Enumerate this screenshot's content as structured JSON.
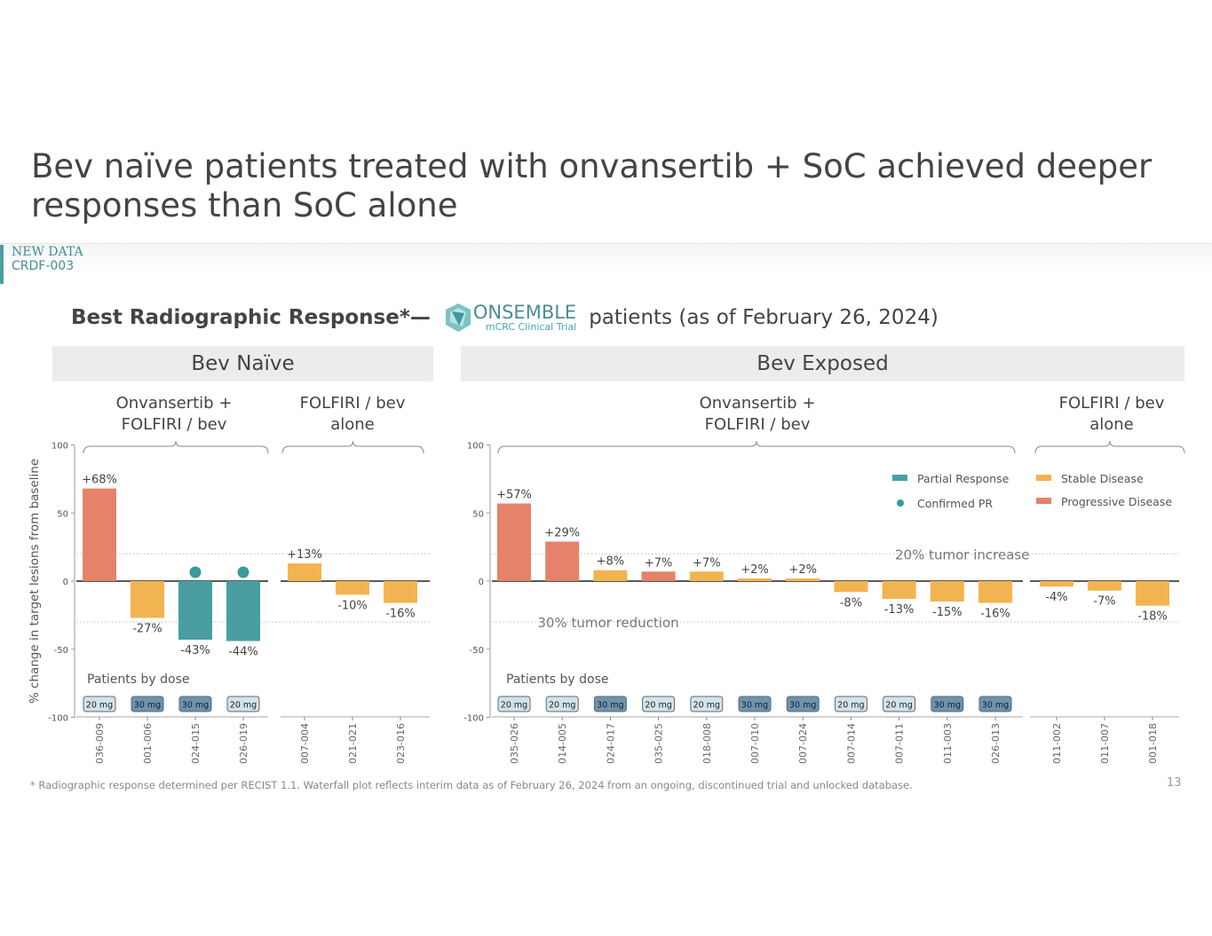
{
  "title": "Bev naïve patients treated with onvansertib + SoC achieved deeper responses than SoC alone",
  "tag": {
    "line1": "NEW DATA",
    "line2": "CRDF-003"
  },
  "subtitle": {
    "bold": "Best Radiographic Response*—",
    "logo_name": "ONSEMBLE",
    "logo_sub": "mCRC Clinical Trial",
    "rest": "patients (as of February 26, 2024)"
  },
  "panels": {
    "left": "Bev Naïve",
    "right": "Bev Exposed"
  },
  "group_labels": {
    "combo": "Onvansertib +\nFOLFIRI / bev",
    "alone": "FOLFIRI / bev\nalone"
  },
  "colors": {
    "Partial Response": "#4a9ea0",
    "Stable Disease": "#f2b450",
    "Progressive Disease": "#e5826a",
    "Confirmed PR": "#3a9a9c",
    "dose_20": "#d5e1e9",
    "dose_30": "#6e93aa"
  },
  "legend": [
    "Partial Response",
    "Confirmed PR",
    "Stable Disease",
    "Progressive Disease"
  ],
  "annotations": {
    "increase": "20% tumor increase",
    "reduction": "30% tumor reduction",
    "dose_title": "Patients by dose"
  },
  "footnote": "*  Radiographic response determined per RECIST 1.1. Waterfall plot reflects interim data as of February 26, 2024 from an ongoing, discontinued trial and unlocked database.",
  "page_number": "13",
  "chart_data": [
    {
      "type": "bar",
      "title": "Bev Naïve",
      "ylabel": "% change in target lesions from baseline",
      "ylim": [
        -100,
        100
      ],
      "yticks": [
        100,
        50,
        0,
        -50,
        -100
      ],
      "reference_lines": [
        20,
        -30
      ],
      "groups": [
        {
          "name": "Onvansertib + FOLFIRI / bev",
          "patients": [
            {
              "id": "036-009",
              "value": 68,
              "label": "+68%",
              "response": "Progressive Disease",
              "dose": "20 mg"
            },
            {
              "id": "001-006",
              "value": -27,
              "label": "-27%",
              "response": "Stable Disease",
              "dose": "30 mg"
            },
            {
              "id": "024-015",
              "value": -43,
              "label": "-43%",
              "response": "Partial Response",
              "confirmed": true,
              "dose": "30 mg"
            },
            {
              "id": "026-019",
              "value": -44,
              "label": "-44%",
              "response": "Partial Response",
              "confirmed": true,
              "dose": "20 mg"
            }
          ]
        },
        {
          "name": "FOLFIRI / bev alone",
          "patients": [
            {
              "id": "007-004",
              "value": 13,
              "label": "+13%",
              "response": "Stable Disease"
            },
            {
              "id": "021-021",
              "value": -10,
              "label": "-10%",
              "response": "Stable Disease"
            },
            {
              "id": "023-016",
              "value": -16,
              "label": "-16%",
              "response": "Stable Disease"
            }
          ]
        }
      ]
    },
    {
      "type": "bar",
      "title": "Bev Exposed",
      "ylim": [
        -100,
        100
      ],
      "yticks": [
        100,
        50,
        0,
        -50,
        -100
      ],
      "reference_lines": [
        20,
        -30
      ],
      "groups": [
        {
          "name": "Onvansertib + FOLFIRI / bev",
          "patients": [
            {
              "id": "035-026",
              "value": 57,
              "label": "+57%",
              "response": "Progressive Disease",
              "dose": "20 mg"
            },
            {
              "id": "014-005",
              "value": 29,
              "label": "+29%",
              "response": "Progressive Disease",
              "dose": "20 mg"
            },
            {
              "id": "024-017",
              "value": 8,
              "label": "+8%",
              "response": "Stable Disease",
              "dose": "30 mg"
            },
            {
              "id": "035-025",
              "value": 7,
              "label": "+7%",
              "response": "Progressive Disease",
              "dose": "20 mg"
            },
            {
              "id": "018-008",
              "value": 7,
              "label": "+7%",
              "response": "Stable Disease",
              "dose": "20 mg"
            },
            {
              "id": "007-010",
              "value": 2,
              "label": "+2%",
              "response": "Stable Disease",
              "dose": "30 mg"
            },
            {
              "id": "007-024",
              "value": 2,
              "label": "+2%",
              "response": "Stable Disease",
              "dose": "30 mg"
            },
            {
              "id": "007-014",
              "value": -8,
              "label": "-8%",
              "response": "Stable Disease",
              "dose": "20 mg"
            },
            {
              "id": "007-011",
              "value": -13,
              "label": "-13%",
              "response": "Stable Disease",
              "dose": "20 mg"
            },
            {
              "id": "011-003",
              "value": -15,
              "label": "-15%",
              "response": "Stable Disease",
              "dose": "30 mg"
            },
            {
              "id": "026-013",
              "value": -16,
              "label": "-16%",
              "response": "Stable Disease",
              "dose": "30 mg"
            }
          ]
        },
        {
          "name": "FOLFIRI / bev alone",
          "patients": [
            {
              "id": "011-002",
              "value": -4,
              "label": "-4%",
              "response": "Stable Disease"
            },
            {
              "id": "011-007",
              "value": -7,
              "label": "-7%",
              "response": "Stable Disease"
            },
            {
              "id": "001-018",
              "value": -18,
              "label": "-18%",
              "response": "Stable Disease"
            }
          ]
        }
      ]
    }
  ]
}
